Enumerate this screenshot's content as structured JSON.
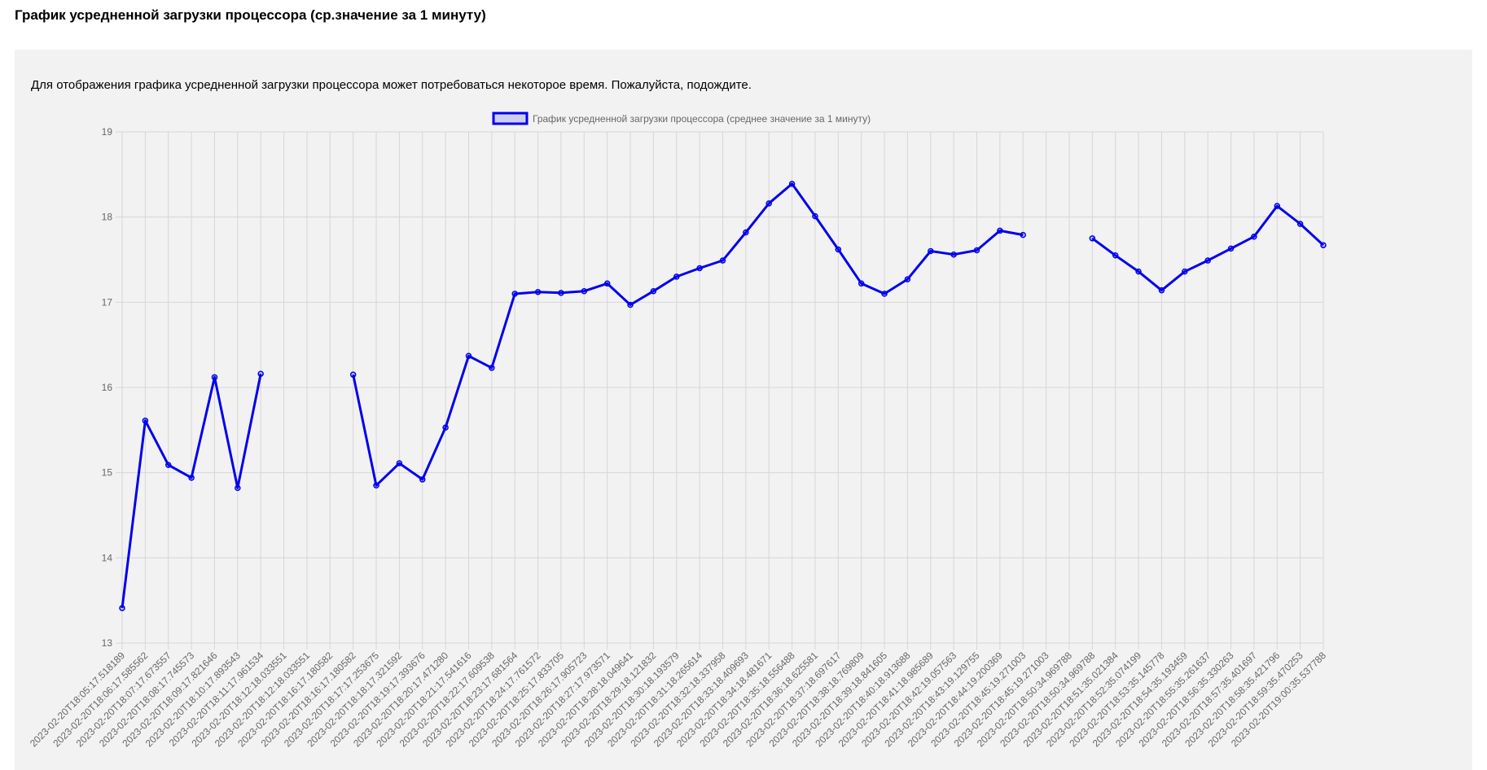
{
  "page": {
    "title": "График усредненной загрузки процессора (ср.значение за 1 минуту)",
    "notice": "Для отображения графика усредненной загрузки процессора может потребоваться некоторое время. Пожалуйста, подождите."
  },
  "chart_data": {
    "type": "line",
    "title": "",
    "xlabel": "",
    "ylabel": "",
    "ylim": [
      13,
      19
    ],
    "yticks": [
      13,
      14,
      15,
      16,
      17,
      18,
      19
    ],
    "grid": true,
    "legend_placement": "top-center",
    "categories": [
      "2023-02-20T18:05:17.518189",
      "2023-02-20T18:06:17.585562",
      "2023-02-20T18:07:17.673557",
      "2023-02-20T18:08:17.745573",
      "2023-02-20T18:09:17.821646",
      "2023-02-20T18:10:17.893543",
      "2023-02-20T18:11:17.961534",
      "2023-02-20T18:12:18.033551",
      "2023-02-20T18:12:18.033551",
      "2023-02-20T18:16:17.180582",
      "2023-02-20T18:16:17.180582",
      "2023-02-20T18:17:17.253675",
      "2023-02-20T18:18:17.321592",
      "2023-02-20T18:19:17.393676",
      "2023-02-20T18:20:17.471280",
      "2023-02-20T18:21:17.541616",
      "2023-02-20T18:22:17.609538",
      "2023-02-20T18:23:17.681564",
      "2023-02-20T18:24:17.761572",
      "2023-02-20T18:25:17.833705",
      "2023-02-20T18:26:17.905723",
      "2023-02-20T18:27:17.973571",
      "2023-02-20T18:28:18.049641",
      "2023-02-20T18:29:18.121832",
      "2023-02-20T18:30:18.193579",
      "2023-02-20T18:31:18.265614",
      "2023-02-20T18:32:18.337958",
      "2023-02-20T18:33:18.409693",
      "2023-02-20T18:34:18.481671",
      "2023-02-20T18:35:18.556488",
      "2023-02-20T18:36:18.625581",
      "2023-02-20T18:37:18.697617",
      "2023-02-20T18:38:18.769809",
      "2023-02-20T18:39:18.841605",
      "2023-02-20T18:40:18.913688",
      "2023-02-20T18:41:18.985689",
      "2023-02-20T18:42:19.057563",
      "2023-02-20T18:43:19.129755",
      "2023-02-20T18:44:19.200369",
      "2023-02-20T18:45:19.271003",
      "2023-02-20T18:45:19.271003",
      "2023-02-20T18:50:34.969788",
      "2023-02-20T18:50:34.969788",
      "2023-02-20T18:51:35.021384",
      "2023-02-20T18:52:35.074199",
      "2023-02-20T18:53:35.145778",
      "2023-02-20T18:54:35.193459",
      "2023-02-20T18:55:35.261637",
      "2023-02-20T18:56:35.330263",
      "2023-02-20T18:57:35.401697",
      "2023-02-20T18:58:35.421796",
      "2023-02-20T18:59:35.470253",
      "2023-02-20T19:00:35.537788"
    ],
    "series": [
      {
        "name": "График усредненной загрузки процессора (среднее значение за 1 минуту)",
        "color": "#0000ee",
        "values": [
          13.41,
          15.61,
          15.09,
          14.94,
          16.12,
          14.82,
          16.16,
          null,
          null,
          null,
          16.15,
          14.85,
          15.11,
          14.92,
          15.53,
          16.37,
          16.23,
          17.1,
          17.12,
          17.11,
          17.13,
          17.22,
          16.97,
          17.13,
          17.3,
          17.4,
          17.49,
          17.82,
          18.16,
          18.39,
          18.01,
          17.62,
          17.22,
          17.1,
          17.27,
          17.6,
          17.56,
          17.61,
          17.84,
          17.79,
          null,
          null,
          17.75,
          17.55,
          17.36,
          17.14,
          17.36,
          17.49,
          17.63,
          17.77,
          18.13,
          17.92,
          17.67
        ]
      }
    ]
  }
}
